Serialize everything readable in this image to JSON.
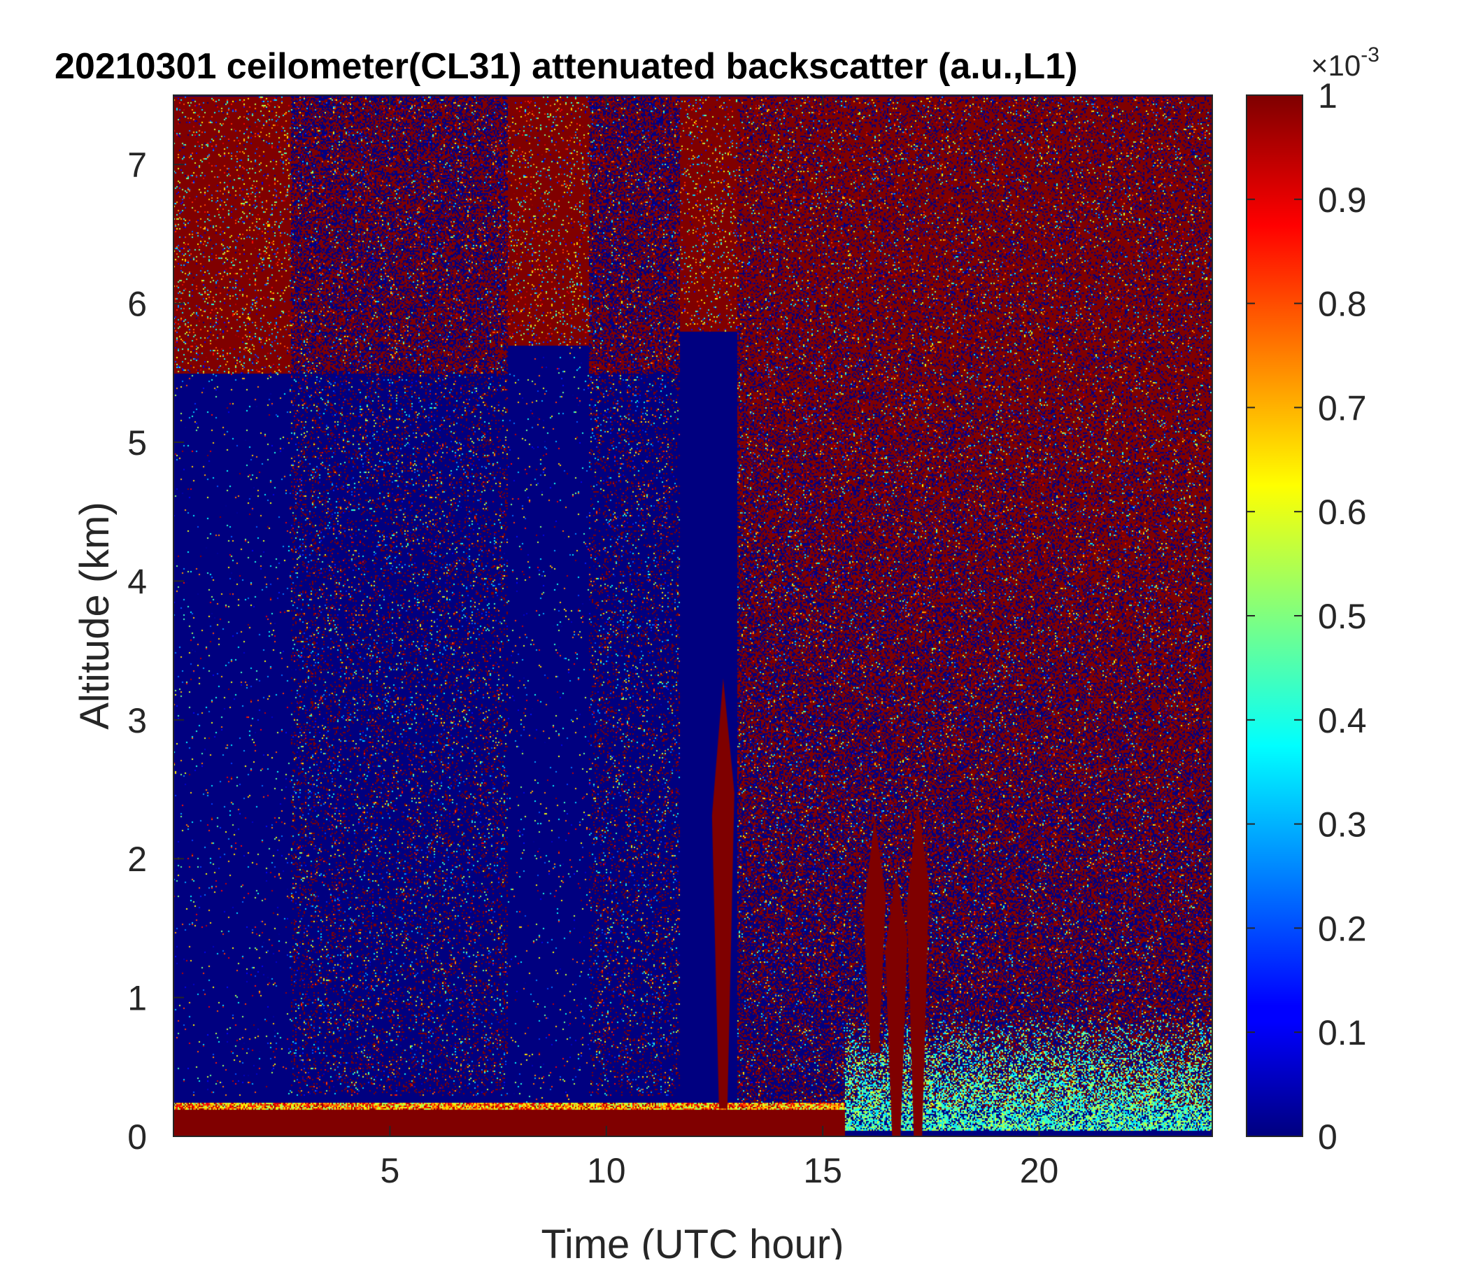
{
  "chart_data": {
    "type": "heatmap",
    "title": "20210301 ceilometer(CL31) attenuated backscatter (a.u.,L1)",
    "xlabel": "Time (UTC hour)",
    "ylabel": "Altitude (km)",
    "xlim": [
      0,
      24
    ],
    "ylim": [
      0,
      7.5
    ],
    "xticks": [
      5,
      10,
      15,
      20
    ],
    "yticks": [
      0,
      1,
      2,
      3,
      4,
      5,
      6,
      7
    ],
    "colorbar": {
      "colormap": "jet",
      "clim": [
        0,
        1
      ],
      "ticks": [
        0,
        0.1,
        0.2,
        0.3,
        0.4,
        0.5,
        0.6,
        0.7,
        0.8,
        0.9,
        1
      ],
      "exponent_label": "×10",
      "exponent_power": "-3"
    },
    "grid": false,
    "colors": {
      "low": "#00007f",
      "high": "#7f0000",
      "mid": "#00ffff"
    },
    "features": [
      {
        "kind": "saturated_block_top",
        "x_from": 0,
        "x_to": 2.7,
        "y_from": 5.5,
        "y_to": 7.5
      },
      {
        "kind": "low_signal_block",
        "x_from": 0,
        "x_to": 2.7,
        "y_from": 0.3,
        "y_to": 5.5
      },
      {
        "kind": "noisy_columns",
        "x_from": 2.7,
        "x_to": 7.7,
        "y_from": 0.3,
        "y_to": 7.5
      },
      {
        "kind": "saturated_block_top",
        "x_from": 7.7,
        "x_to": 9.6,
        "y_from": 5.7,
        "y_to": 7.5
      },
      {
        "kind": "low_signal_block",
        "x_from": 7.7,
        "x_to": 9.6,
        "y_from": 0.2,
        "y_to": 5.7
      },
      {
        "kind": "noisy_columns",
        "x_from": 9.6,
        "x_to": 11.7,
        "y_from": 0.3,
        "y_to": 7.5
      },
      {
        "kind": "saturated_block_top",
        "x_from": 11.7,
        "x_to": 13.0,
        "y_from": 5.8,
        "y_to": 7.5
      },
      {
        "kind": "noisy_background",
        "x_from": 13.0,
        "x_to": 24,
        "y_from": 0.2,
        "y_to": 7.5
      },
      {
        "kind": "boundary_layer",
        "x_from": 0,
        "x_to": 15.5,
        "y_from": 0,
        "y_to": 0.25
      },
      {
        "kind": "cloud_plume",
        "x": 12.7,
        "y_from": 0.2,
        "y_to": 3.3
      },
      {
        "kind": "cloud_plume",
        "x": 16.2,
        "y_from": 0.6,
        "y_to": 2.3
      },
      {
        "kind": "cloud_plume",
        "x": 16.7,
        "y_from": 0,
        "y_to": 1.9
      },
      {
        "kind": "cloud_plume",
        "x": 17.2,
        "y_from": 0,
        "y_to": 2.4
      },
      {
        "kind": "aerosol_layer",
        "x_from": 15.5,
        "x_to": 24,
        "y_from": 0.05,
        "y_to": 0.9
      }
    ]
  }
}
